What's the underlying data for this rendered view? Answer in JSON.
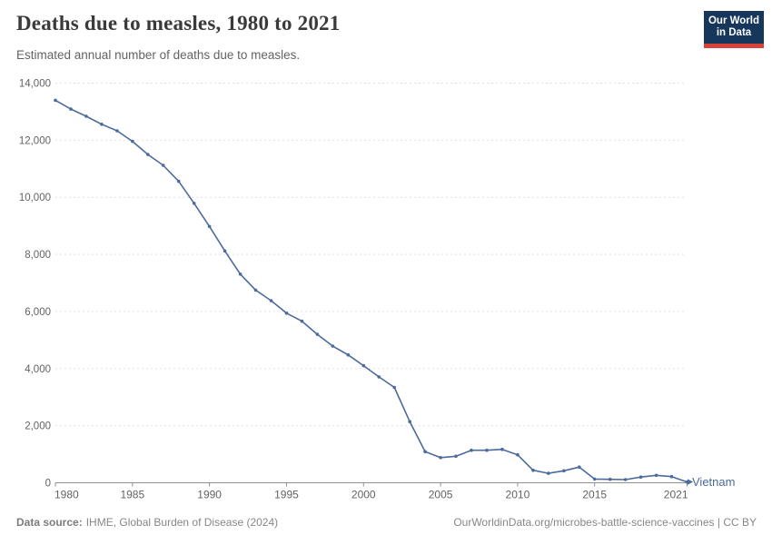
{
  "header": {
    "logo": {
      "line1": "Our World",
      "line2": "in Data"
    }
  },
  "footer": {
    "datasource_label": "Data source:",
    "datasource_text": "IHME, Global Burden of Disease (2024)",
    "credit": "OurWorldinData.org/microbes-battle-science-vaccines | CC BY"
  },
  "chart_data": {
    "type": "line",
    "title": "Deaths due to measles, 1980 to 2021",
    "subtitle": "Estimated annual number of deaths due to measles.",
    "xlabel": "",
    "ylabel": "",
    "xlim": [
      1980,
      2021
    ],
    "ylim": [
      0,
      14000
    ],
    "grid": "horizontal-dashed",
    "legend_position": "end-of-line",
    "x": [
      1980,
      1981,
      1982,
      1983,
      1984,
      1985,
      1986,
      1987,
      1988,
      1989,
      1990,
      1991,
      1992,
      1993,
      1994,
      1995,
      1996,
      1997,
      1998,
      1999,
      2000,
      2001,
      2002,
      2003,
      2004,
      2005,
      2006,
      2007,
      2008,
      2009,
      2010,
      2011,
      2012,
      2013,
      2014,
      2015,
      2016,
      2017,
      2018,
      2019,
      2020,
      2021
    ],
    "series": [
      {
        "name": "Vietnam",
        "color": "#4c6a9c",
        "values": [
          13400,
          13090,
          12840,
          12560,
          12330,
          11960,
          11500,
          11120,
          10560,
          9790,
          8980,
          8120,
          7310,
          6750,
          6380,
          5940,
          5660,
          5200,
          4790,
          4480,
          4100,
          3710,
          3340,
          2140,
          1090,
          880,
          930,
          1140,
          1140,
          1170,
          980,
          440,
          330,
          420,
          550,
          130,
          120,
          110,
          200,
          260,
          215,
          30
        ]
      }
    ],
    "xticks": {
      "values": [
        1980,
        1985,
        1990,
        1995,
        2000,
        2005,
        2010,
        2015,
        2021
      ],
      "labels": [
        "1980",
        "1985",
        "1990",
        "1995",
        "2000",
        "2005",
        "2010",
        "2015",
        "2021"
      ]
    },
    "yticks": {
      "values": [
        0,
        2000,
        4000,
        6000,
        8000,
        10000,
        12000,
        14000
      ],
      "labels": [
        "0",
        "2,000",
        "4,000",
        "6,000",
        "8,000",
        "10,000",
        "12,000",
        "14,000"
      ]
    }
  }
}
